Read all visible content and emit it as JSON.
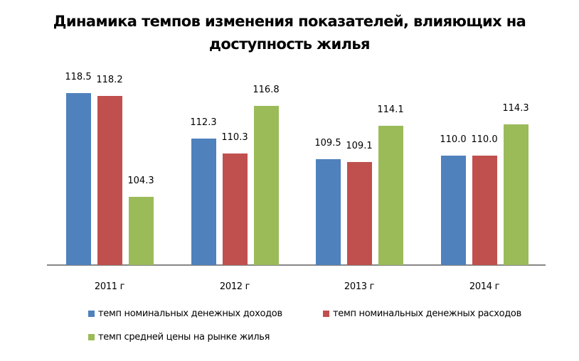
{
  "title_line1": "Динамика темпов  изменения показателей, влияющих на",
  "title_line2": "доступность жилья",
  "colors": {
    "income": "#4F81BD",
    "expense": "#C0504D",
    "housing": "#9BBB59"
  },
  "legend": {
    "income": "темп номинальных денежных доходов",
    "expense": "темп номинальных денежных расходов",
    "housing": "темп средней цены на рынке жилья"
  },
  "chart_data": {
    "type": "bar",
    "title": "Динамика темпов  изменения показателей, влияющих на доступность жилья",
    "categories": [
      "2011 г",
      "2012 г",
      "2013 г",
      "2014 г"
    ],
    "series": [
      {
        "name": "темп номинальных денежных доходов",
        "color": "#4F81BD",
        "values": [
          118.5,
          112.3,
          109.5,
          110.0
        ]
      },
      {
        "name": "темп номинальных денежных расходов",
        "color": "#C0504D",
        "values": [
          118.2,
          110.3,
          109.1,
          110.0
        ]
      },
      {
        "name": "темп средней цены на рынке жилья",
        "color": "#9BBB59",
        "values": [
          104.3,
          116.8,
          114.1,
          114.3
        ]
      }
    ],
    "data_labels": [
      [
        "118.5",
        "118.2",
        "104.3"
      ],
      [
        "112.3",
        "110.3",
        "116.8"
      ],
      [
        "109.5",
        "109.1",
        "114.1"
      ],
      [
        "110.0",
        "110.0",
        "114.3"
      ]
    ],
    "xlabel": "",
    "ylabel": "",
    "ylim": [
      95,
      120
    ],
    "grid": false,
    "y_axis_visible": false,
    "legend_position": "bottom"
  }
}
